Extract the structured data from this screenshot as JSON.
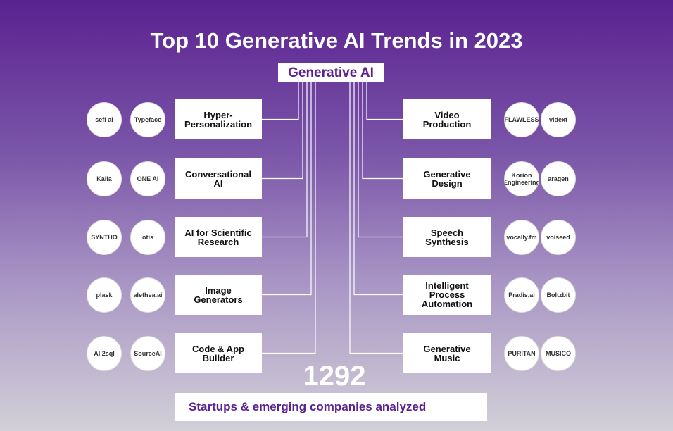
{
  "title": "Top 10 Generative AI Trends in 2023",
  "root": "Generative AI",
  "left": [
    {
      "label": "Hyper-Personalization",
      "companies": [
        "sefi ai",
        "Typeface"
      ]
    },
    {
      "label": "Conversational AI",
      "companies": [
        "Kaila",
        "ONE AI"
      ]
    },
    {
      "label": "AI for Scientific Research",
      "companies": [
        "SYNTHO",
        "otis"
      ]
    },
    {
      "label": "Image Generators",
      "companies": [
        "plask",
        "alethea.ai"
      ]
    },
    {
      "label": "Code & App Builder",
      "companies": [
        "AI 2sql",
        "SourceAI"
      ]
    }
  ],
  "right": [
    {
      "label": "Video Production",
      "companies": [
        "FLAWLESS",
        "vidext"
      ]
    },
    {
      "label": "Generative Design",
      "companies": [
        "Korion Engineering",
        "aragen"
      ]
    },
    {
      "label": "Speech Synthesis",
      "companies": [
        "vocally.fm",
        "voiseed"
      ]
    },
    {
      "label": "Intelligent Process Automation",
      "companies": [
        "Pradis.ai",
        "Boltzbit"
      ]
    },
    {
      "label": "Generative Music",
      "companies": [
        "PURITAN",
        "MUSICO"
      ]
    }
  ],
  "count": 1292,
  "count_caption": "Startups & emerging companies analyzed"
}
